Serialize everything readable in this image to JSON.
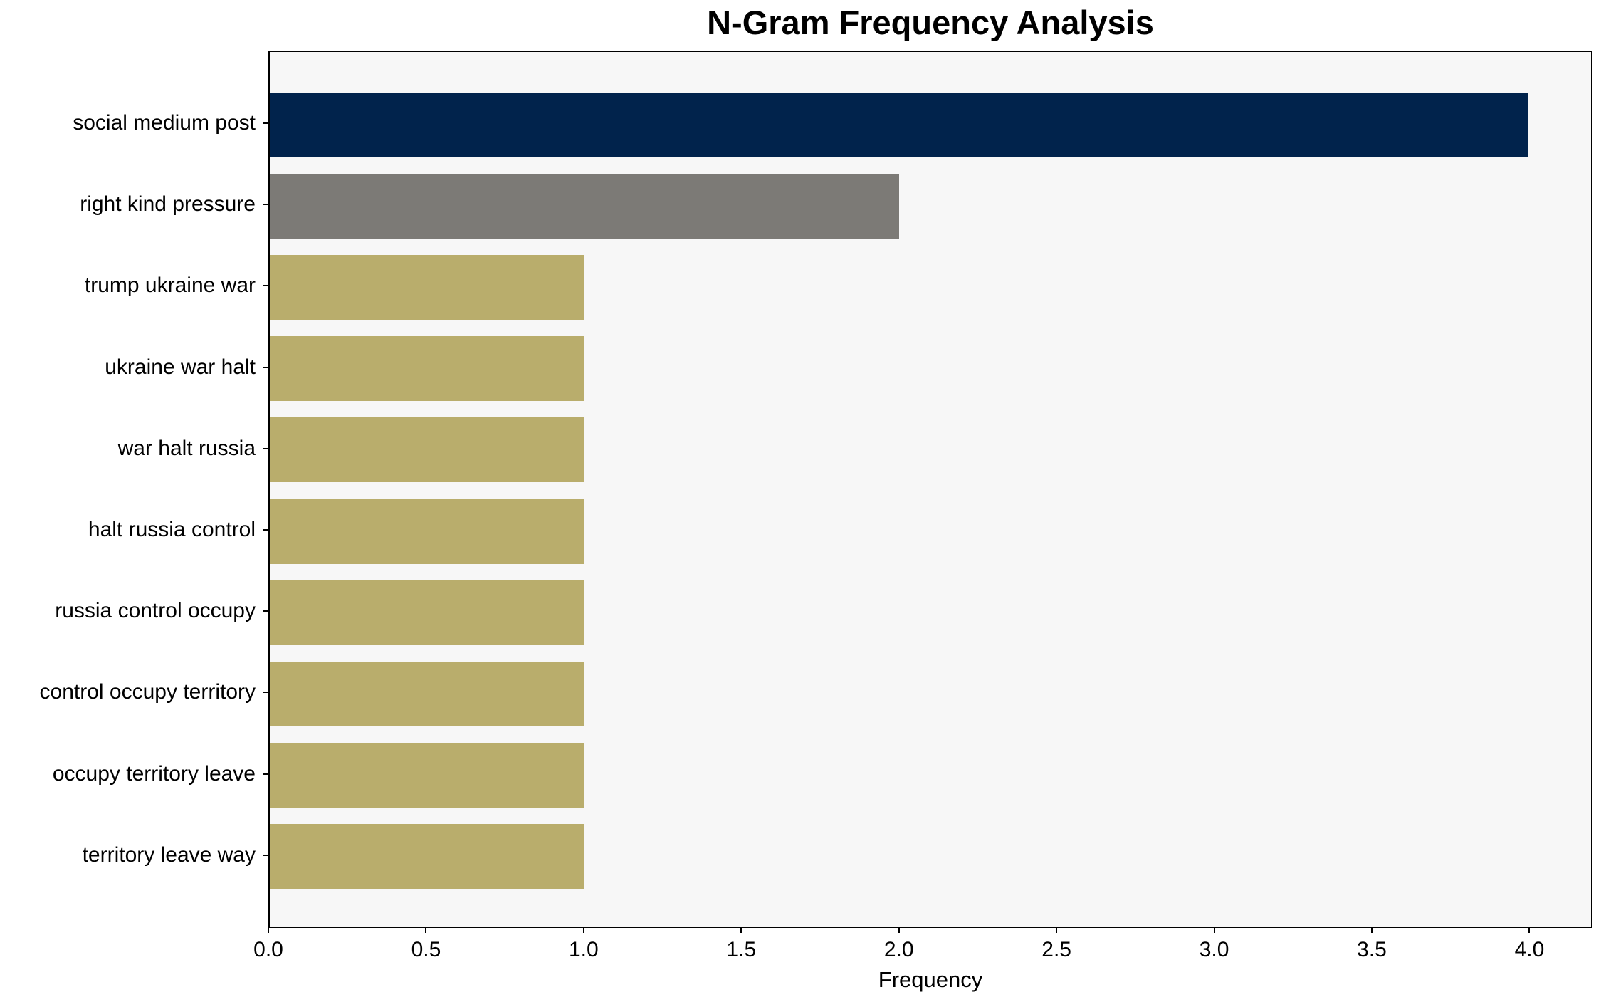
{
  "chart_data": {
    "type": "bar",
    "orientation": "horizontal",
    "title": "N-Gram Frequency Analysis",
    "xlabel": "Frequency",
    "ylabel": "",
    "categories": [
      "social medium post",
      "right kind pressure",
      "trump ukraine war",
      "ukraine war halt",
      "war halt russia",
      "halt russia control",
      "russia control occupy",
      "control occupy territory",
      "occupy territory leave",
      "territory leave way"
    ],
    "values": [
      4,
      2,
      1,
      1,
      1,
      1,
      1,
      1,
      1,
      1
    ],
    "bar_colors": [
      "#01234c",
      "#7c7a76",
      "#b9ad6c",
      "#b9ad6c",
      "#b9ad6c",
      "#b9ad6c",
      "#b9ad6c",
      "#b9ad6c",
      "#b9ad6c",
      "#b9ad6c"
    ],
    "x_tick_labels": [
      "0.0",
      "0.5",
      "1.0",
      "1.5",
      "2.0",
      "2.5",
      "3.0",
      "3.5",
      "4.0"
    ],
    "xlim": [
      0,
      4.2
    ],
    "grid": false,
    "legend": null,
    "plot_background": "#f7f7f7",
    "figure_background": "#ffffff",
    "spine_color": "#000000"
  }
}
